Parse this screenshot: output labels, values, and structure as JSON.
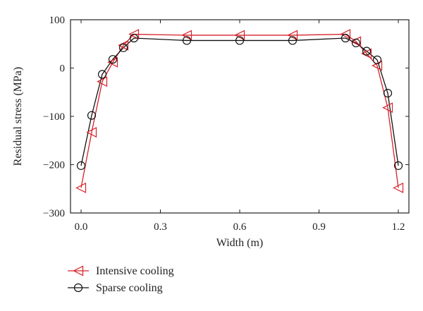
{
  "chart_data": {
    "type": "line",
    "xlabel": "Width (m)",
    "ylabel": "Residual stress (MPa)",
    "xlim": [
      -0.04,
      1.24
    ],
    "ylim": [
      -300,
      100
    ],
    "xticks": [
      0.0,
      0.3,
      0.6,
      0.9,
      1.2
    ],
    "xtick_labels": [
      "0.0",
      "0.3",
      "0.6",
      "0.9",
      "1.2"
    ],
    "yticks": [
      -300,
      -200,
      -100,
      0,
      100
    ],
    "ytick_labels": [
      "−300",
      "−200",
      "−100",
      "0",
      "100"
    ],
    "grid": false,
    "legend_position": "bottom-left, below plot",
    "series": [
      {
        "name": "Intensive cooling",
        "color": "#d6222a",
        "marker": "left-triangle",
        "x": [
          0.0,
          0.04,
          0.08,
          0.12,
          0.16,
          0.2,
          0.4,
          0.6,
          0.8,
          1.0,
          1.04,
          1.08,
          1.12,
          1.16,
          1.2
        ],
        "y": [
          -248,
          -133,
          -28,
          12,
          47,
          70,
          68,
          68,
          68,
          70,
          55,
          30,
          5,
          -82,
          -248
        ]
      },
      {
        "name": "Sparse cooling",
        "color": "#111111",
        "marker": "circle",
        "x": [
          0.0,
          0.04,
          0.08,
          0.12,
          0.16,
          0.2,
          0.4,
          0.6,
          0.8,
          1.0,
          1.04,
          1.08,
          1.12,
          1.16,
          1.2
        ],
        "y": [
          -202,
          -98,
          -13,
          18,
          42,
          62,
          57,
          57,
          57,
          62,
          52,
          35,
          17,
          -52,
          -202
        ]
      }
    ]
  }
}
